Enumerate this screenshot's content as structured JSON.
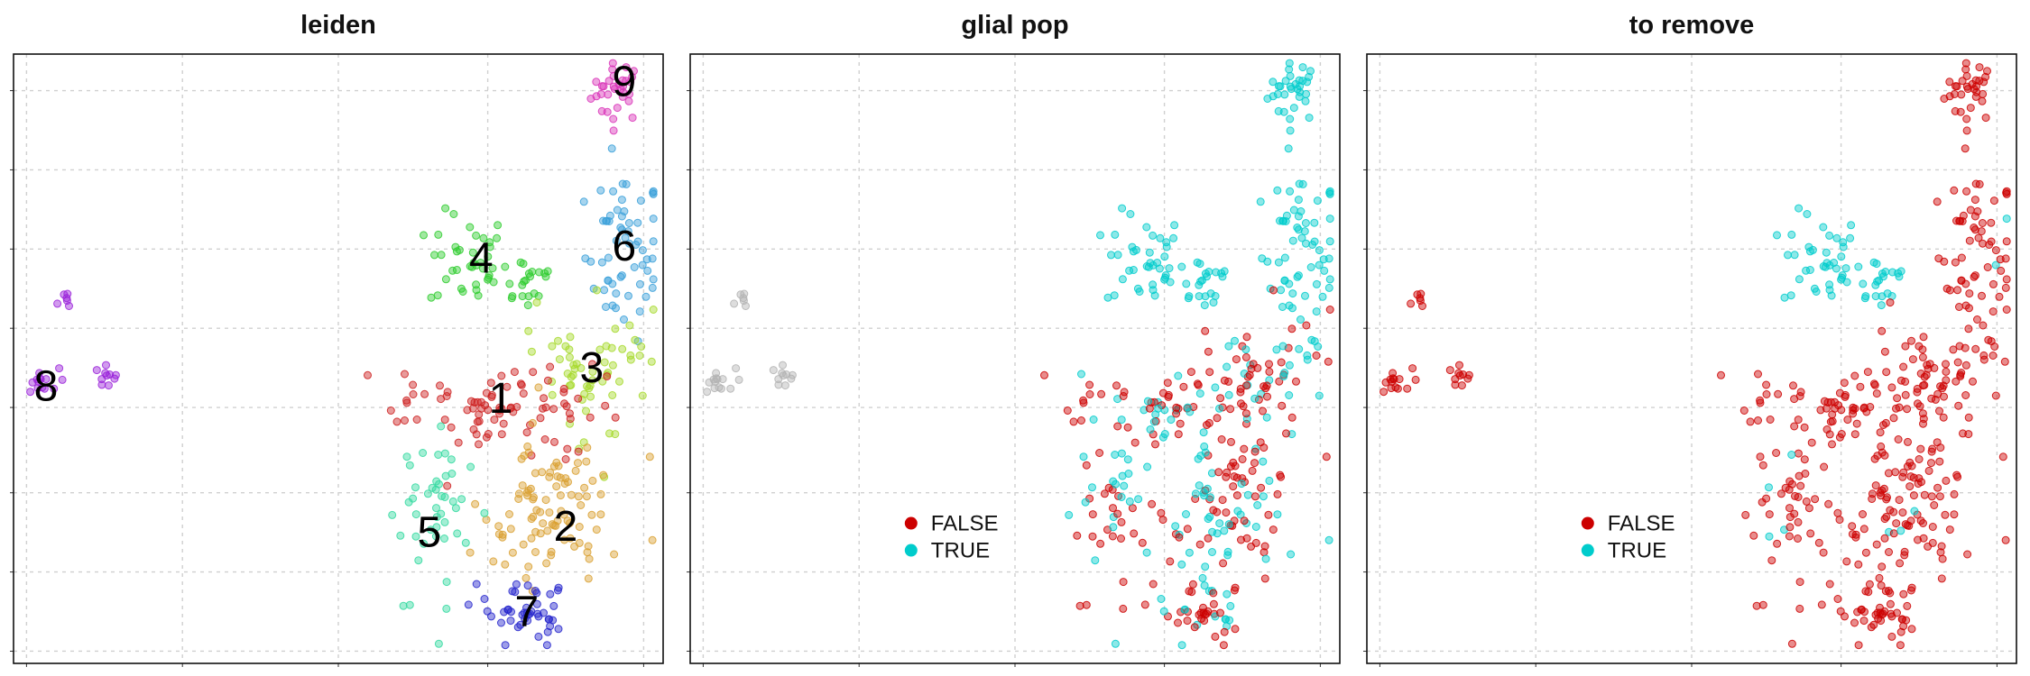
{
  "chart_data": [
    {
      "type": "scatter",
      "title": "leiden",
      "xlabel": "",
      "ylabel": "",
      "grid": true,
      "legend": "none",
      "color_by": "cluster",
      "cluster_labels": [
        "1",
        "2",
        "3",
        "4",
        "5",
        "6",
        "7",
        "8",
        "9"
      ]
    },
    {
      "type": "scatter",
      "title": "glial pop",
      "xlabel": "",
      "ylabel": "",
      "grid": true,
      "legend": "bottom-center",
      "series": [
        {
          "name": "FALSE",
          "color": "#cc0000"
        },
        {
          "name": "TRUE",
          "color": "#00cccc"
        }
      ],
      "na_color": "#b3b3b3"
    },
    {
      "type": "scatter",
      "title": "to remove",
      "xlabel": "",
      "ylabel": "",
      "grid": true,
      "legend": "bottom-center",
      "series": [
        {
          "name": "FALSE",
          "color": "#cc0000"
        },
        {
          "name": "TRUE",
          "color": "#00cccc"
        }
      ]
    }
  ],
  "clusters": [
    {
      "id": "1",
      "color": "#cc1f1f",
      "label_pos": [
        0.75,
        0.43
      ]
    },
    {
      "id": "2",
      "color": "#d9a030",
      "label_pos": [
        0.85,
        0.22
      ]
    },
    {
      "id": "3",
      "color": "#a6d92b",
      "label_pos": [
        0.89,
        0.48
      ]
    },
    {
      "id": "4",
      "color": "#2ecc2e",
      "label_pos": [
        0.72,
        0.66
      ]
    },
    {
      "id": "5",
      "color": "#33d9a0",
      "label_pos": [
        0.64,
        0.21
      ]
    },
    {
      "id": "6",
      "color": "#3aa0d9",
      "label_pos": [
        0.94,
        0.68
      ]
    },
    {
      "id": "7",
      "color": "#2626cc",
      "label_pos": [
        0.79,
        0.08
      ]
    },
    {
      "id": "8",
      "color": "#9a22d9",
      "label_pos": [
        0.05,
        0.45
      ]
    },
    {
      "id": "9",
      "color": "#d933b8",
      "label_pos": [
        0.94,
        0.95
      ]
    }
  ]
}
